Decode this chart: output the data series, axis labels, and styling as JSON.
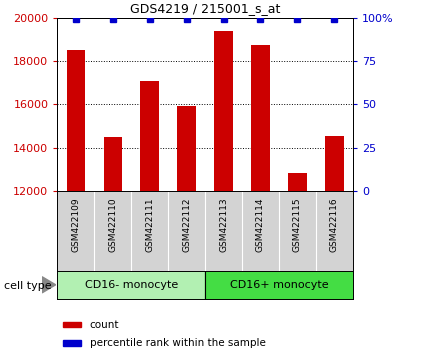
{
  "title": "GDS4219 / 215001_s_at",
  "samples": [
    "GSM422109",
    "GSM422110",
    "GSM422111",
    "GSM422112",
    "GSM422113",
    "GSM422114",
    "GSM422115",
    "GSM422116"
  ],
  "counts": [
    18500,
    14500,
    17100,
    15950,
    19400,
    18750,
    12850,
    14550
  ],
  "percentile_ranks": [
    99,
    99,
    99,
    99,
    99,
    99,
    99,
    99
  ],
  "cell_type_groups": [
    {
      "label": "CD16- monocyte",
      "start": 0,
      "end": 3,
      "color": "#90ee90"
    },
    {
      "label": "CD16+ monocyte",
      "start": 4,
      "end": 7,
      "color": "#32cd32"
    }
  ],
  "ylim_left": [
    12000,
    20000
  ],
  "ylim_right": [
    0,
    100
  ],
  "yticks_left": [
    12000,
    14000,
    16000,
    18000,
    20000
  ],
  "yticks_right": [
    0,
    25,
    50,
    75,
    100
  ],
  "bar_color": "#cc0000",
  "dot_color": "#0000cc",
  "bar_width": 0.5,
  "tick_area_color": "#d3d3d3",
  "group1_color": "#b2f0b2",
  "group2_color": "#44dd44",
  "legend_items": [
    {
      "label": "count",
      "color": "#cc0000"
    },
    {
      "label": "percentile rank within the sample",
      "color": "#0000cc"
    }
  ],
  "cell_type_label": "cell type"
}
